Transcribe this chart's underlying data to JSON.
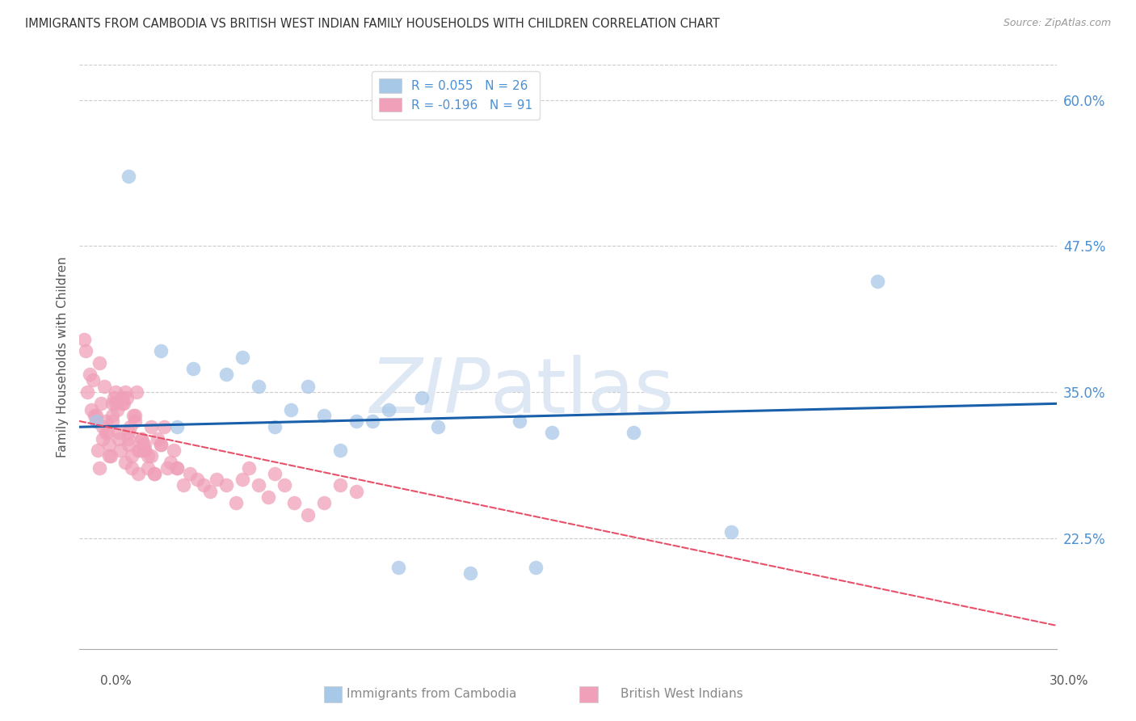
{
  "title": "IMMIGRANTS FROM CAMBODIA VS BRITISH WEST INDIAN FAMILY HOUSEHOLDS WITH CHILDREN CORRELATION CHART",
  "source": "Source: ZipAtlas.com",
  "ylabel": "Family Households with Children",
  "xlim": [
    0.0,
    30.0
  ],
  "ylim": [
    13.0,
    63.0
  ],
  "yticks": [
    22.5,
    35.0,
    47.5,
    60.0
  ],
  "ytick_labels": [
    "22.5%",
    "35.0%",
    "47.5%",
    "60.0%"
  ],
  "legend_r1": "R = 0.055",
  "legend_n1": "N = 26",
  "legend_r2": "R = -0.196",
  "legend_n2": "N = 91",
  "color_cambodia": "#a8c8e8",
  "color_bwi": "#f0a0b8",
  "color_line_cambodia": "#1a5faa",
  "color_line_bwi": "#e8506a",
  "color_axis_labels": "#4a90d4",
  "color_grid": "#cccccc",
  "color_title": "#333333",
  "color_source": "#999999",
  "color_watermark": "#dde8f4",
  "watermark_zip": "ZIP",
  "watermark_atlas": "atlas",
  "cambodia_x": [
    1.5,
    3.5,
    4.5,
    5.5,
    6.5,
    7.0,
    7.5,
    8.5,
    9.0,
    9.5,
    10.5,
    11.0,
    13.5,
    14.5,
    17.0,
    20.0,
    24.5,
    2.5,
    3.0,
    5.0,
    6.0,
    8.0,
    9.8,
    12.0,
    14.0,
    0.5
  ],
  "cambodia_y": [
    53.5,
    37.0,
    36.5,
    35.5,
    33.5,
    35.5,
    33.0,
    32.5,
    32.5,
    33.5,
    34.5,
    32.0,
    32.5,
    31.5,
    31.5,
    23.0,
    44.5,
    38.5,
    32.0,
    38.0,
    32.0,
    30.0,
    20.0,
    19.5,
    20.0,
    32.5
  ],
  "bwi_x": [
    0.2,
    0.3,
    0.35,
    0.4,
    0.45,
    0.5,
    0.55,
    0.6,
    0.65,
    0.7,
    0.75,
    0.8,
    0.85,
    0.9,
    0.95,
    1.0,
    1.05,
    1.1,
    1.15,
    1.2,
    1.25,
    1.3,
    1.35,
    1.4,
    1.45,
    1.5,
    1.55,
    1.6,
    1.65,
    1.7,
    1.75,
    1.8,
    1.85,
    1.9,
    1.95,
    2.0,
    2.1,
    2.2,
    2.3,
    2.4,
    2.5,
    2.6,
    2.7,
    2.8,
    2.9,
    3.0,
    3.2,
    3.4,
    3.6,
    3.8,
    4.0,
    4.2,
    4.5,
    4.8,
    5.0,
    5.2,
    5.5,
    5.8,
    6.0,
    6.3,
    6.6,
    7.0,
    7.5,
    8.0,
    8.5,
    0.15,
    0.25,
    1.0,
    1.5,
    2.0,
    2.5,
    3.0,
    0.5,
    0.7,
    0.9,
    1.1,
    1.3,
    1.5,
    1.7,
    1.9,
    2.1,
    2.3,
    0.6,
    0.8,
    1.0,
    1.2,
    1.4,
    1.6,
    1.8,
    2.0,
    2.2
  ],
  "bwi_y": [
    38.5,
    36.5,
    33.5,
    36.0,
    33.0,
    32.5,
    30.0,
    37.5,
    34.0,
    32.0,
    35.5,
    32.5,
    31.5,
    30.5,
    29.5,
    34.0,
    34.5,
    35.0,
    33.5,
    31.5,
    30.0,
    34.5,
    34.0,
    35.0,
    34.5,
    31.0,
    32.0,
    28.5,
    33.0,
    32.5,
    35.0,
    28.0,
    30.0,
    31.0,
    30.5,
    30.0,
    29.5,
    32.0,
    28.0,
    31.0,
    30.5,
    32.0,
    28.5,
    29.0,
    30.0,
    28.5,
    27.0,
    28.0,
    27.5,
    27.0,
    26.5,
    27.5,
    27.0,
    25.5,
    27.5,
    28.5,
    27.0,
    26.0,
    28.0,
    27.0,
    25.5,
    24.5,
    25.5,
    27.0,
    26.5,
    39.5,
    35.0,
    33.0,
    30.5,
    30.0,
    30.5,
    28.5,
    33.0,
    31.0,
    29.5,
    34.0,
    34.0,
    31.5,
    33.0,
    31.0,
    28.5,
    28.0,
    28.5,
    31.5,
    32.5,
    31.0,
    29.0,
    29.5,
    30.0,
    30.5,
    29.5
  ],
  "line_cambodia_x0": 0.0,
  "line_cambodia_y0": 32.0,
  "line_cambodia_x1": 30.0,
  "line_cambodia_y1": 34.0,
  "line_bwi_x0": 0.0,
  "line_bwi_y0": 32.5,
  "line_bwi_x1": 30.0,
  "line_bwi_y1": 15.0
}
